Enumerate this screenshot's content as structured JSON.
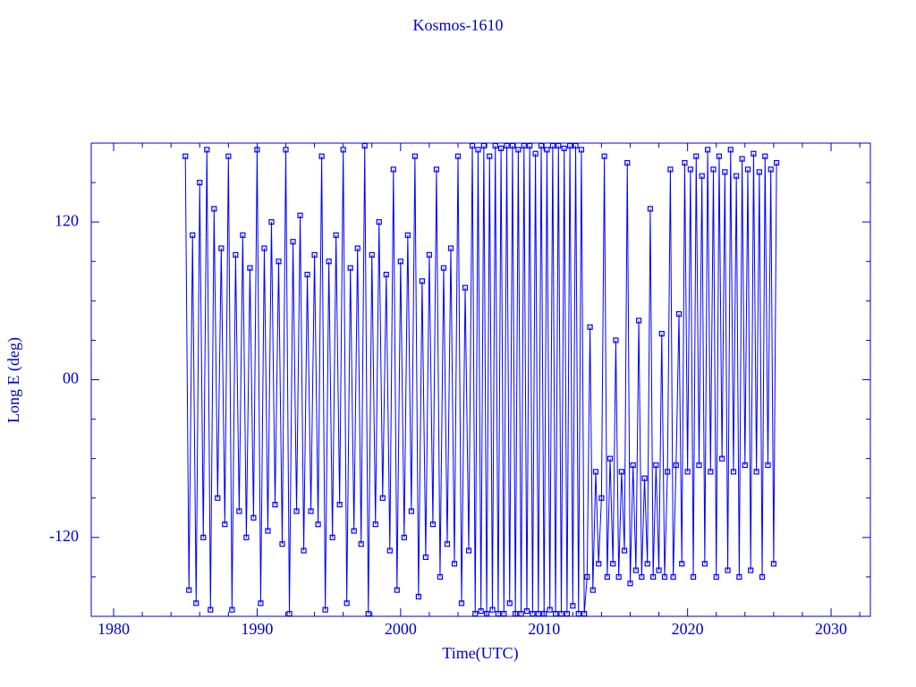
{
  "chart_data": {
    "type": "line",
    "title": "Kosmos-1610",
    "x_label": "Time(UTC)",
    "y_label": "Long E (deg)",
    "color": "#0000ff",
    "xlim": [
      1978.44,
      2032.74
    ],
    "ylim": [
      -180,
      180
    ],
    "xticks": [
      1980,
      1990,
      2000,
      2010,
      2020,
      2030
    ],
    "xminorticks": [
      1982,
      1984,
      1986,
      1988,
      1992,
      1994,
      1996,
      1998,
      2002,
      2004,
      2006,
      2008,
      2012,
      2014,
      2016,
      2018,
      2022,
      2024,
      2026,
      2028,
      2032
    ],
    "yticks": [
      -120,
      {
        "value": 0,
        "label": "00"
      },
      120
    ],
    "yminorticks": [
      -150,
      -90,
      -60,
      -30,
      30,
      60,
      90,
      150
    ],
    "x": [
      1985.0,
      1985.25,
      1985.5,
      1985.75,
      1986.0,
      1986.25,
      1986.5,
      1986.75,
      1987.0,
      1987.25,
      1987.5,
      1987.75,
      1988.0,
      1988.25,
      1988.5,
      1988.75,
      1989.0,
      1989.25,
      1989.5,
      1989.75,
      1990.0,
      1990.25,
      1990.5,
      1990.75,
      1991.0,
      1991.25,
      1991.5,
      1991.75,
      1992.0,
      1992.25,
      1992.5,
      1992.75,
      1993.0,
      1993.25,
      1993.5,
      1993.75,
      1994.0,
      1994.25,
      1994.5,
      1994.75,
      1995.0,
      1995.25,
      1995.5,
      1995.75,
      1996.0,
      1996.25,
      1996.5,
      1996.75,
      1997.0,
      1997.25,
      1997.5,
      1997.75,
      1998.0,
      1998.25,
      1998.5,
      1998.75,
      1999.0,
      1999.25,
      1999.5,
      1999.75,
      2000.0,
      2000.25,
      2000.5,
      2000.75,
      2001.0,
      2001.25,
      2001.5,
      2001.75,
      2002.0,
      2002.25,
      2002.5,
      2002.75,
      2003.0,
      2003.25,
      2003.5,
      2003.75,
      2004.0,
      2004.25,
      2004.5,
      2004.75,
      2005.0,
      2005.2,
      2005.4,
      2005.6,
      2005.8,
      2006.0,
      2006.2,
      2006.4,
      2006.6,
      2006.8,
      2007.0,
      2007.2,
      2007.4,
      2007.6,
      2007.8,
      2008.0,
      2008.2,
      2008.4,
      2008.6,
      2008.8,
      2009.0,
      2009.2,
      2009.4,
      2009.6,
      2009.8,
      2010.0,
      2010.2,
      2010.4,
      2010.6,
      2010.8,
      2011.0,
      2011.2,
      2011.4,
      2011.6,
      2011.8,
      2012.0,
      2012.2,
      2012.4,
      2012.6,
      2012.8,
      2013.0,
      2013.2,
      2013.4,
      2013.6,
      2013.8,
      2014.0,
      2014.2,
      2014.4,
      2014.6,
      2014.8,
      2015.0,
      2015.2,
      2015.4,
      2015.6,
      2015.8,
      2016.0,
      2016.2,
      2016.4,
      2016.6,
      2016.8,
      2017.0,
      2017.2,
      2017.4,
      2017.6,
      2017.8,
      2018.0,
      2018.2,
      2018.4,
      2018.6,
      2018.8,
      2019.0,
      2019.2,
      2019.4,
      2019.6,
      2019.8,
      2020.0,
      2020.2,
      2020.4,
      2020.6,
      2020.8,
      2021.0,
      2021.2,
      2021.4,
      2021.6,
      2021.8,
      2022.0,
      2022.2,
      2022.4,
      2022.6,
      2022.8,
      2023.0,
      2023.2,
      2023.4,
      2023.6,
      2023.8,
      2024.0,
      2024.2,
      2024.4,
      2024.6,
      2024.8,
      2025.0,
      2025.2,
      2025.4,
      2025.6,
      2025.8,
      2026.0,
      2026.2
    ],
    "values": [
      170,
      -160,
      110,
      -170,
      150,
      -120,
      175,
      -175,
      130,
      -90,
      100,
      -110,
      170,
      -175,
      95,
      -100,
      110,
      -120,
      85,
      -105,
      175,
      -170,
      100,
      -115,
      120,
      -95,
      90,
      -125,
      175,
      -178,
      105,
      -100,
      125,
      -130,
      80,
      -100,
      95,
      -110,
      170,
      -175,
      90,
      -120,
      110,
      -95,
      175,
      -170,
      85,
      -115,
      100,
      -125,
      178,
      -178,
      95,
      -110,
      120,
      -90,
      80,
      -130,
      160,
      -160,
      90,
      -120,
      110,
      -100,
      170,
      -165,
      75,
      -135,
      95,
      -110,
      160,
      -150,
      85,
      -125,
      100,
      -140,
      170,
      -170,
      70,
      -130,
      178,
      -178,
      175,
      -176,
      178,
      -178,
      170,
      -175,
      178,
      -178,
      176,
      -178,
      178,
      -170,
      178,
      -178,
      175,
      -178,
      178,
      -176,
      178,
      -178,
      172,
      -178,
      178,
      -178,
      175,
      -175,
      178,
      -178,
      178,
      -178,
      176,
      -178,
      178,
      -172,
      178,
      -178,
      175,
      -178,
      -150,
      40,
      -160,
      -70,
      -140,
      -90,
      170,
      -150,
      -60,
      -140,
      30,
      -150,
      -70,
      -130,
      165,
      -155,
      -65,
      -145,
      45,
      -150,
      -75,
      -140,
      130,
      -150,
      -65,
      -145,
      35,
      -150,
      -70,
      160,
      -150,
      -65,
      50,
      -140,
      165,
      -70,
      160,
      -150,
      170,
      -65,
      155,
      -140,
      175,
      -70,
      160,
      -150,
      170,
      -60,
      158,
      -145,
      175,
      -70,
      155,
      -150,
      168,
      -65,
      160,
      -145,
      172,
      -70,
      158,
      -150,
      170,
      -65,
      160,
      -140,
      165
    ]
  }
}
